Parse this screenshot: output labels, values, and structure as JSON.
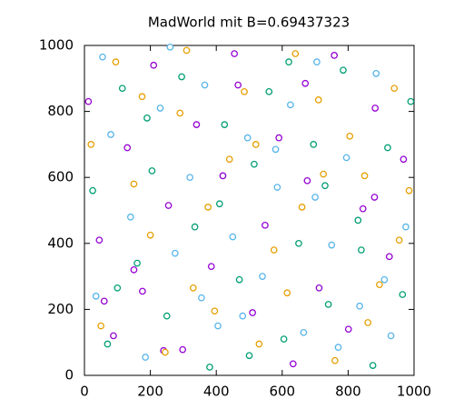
{
  "chart_data": {
    "type": "scatter",
    "title": "MadWorld mit B=0.69437323",
    "xlim": [
      0,
      1000
    ],
    "ylim": [
      0,
      1000
    ],
    "xticks": [
      0,
      200,
      400,
      600,
      800,
      1000
    ],
    "yticks": [
      0,
      200,
      400,
      600,
      800,
      1000
    ],
    "series": [
      {
        "color": "#9400d3",
        "x": [
          12,
          45,
          88,
          130,
          176,
          210,
          255,
          298,
          340,
          385,
          420,
          466,
          510,
          548,
          590,
          633,
          676,
          712,
          758,
          801,
          845,
          882,
          925,
          968,
          60,
          240,
          455,
          670,
          880,
          150
        ],
        "values": [
          830,
          410,
          120,
          690,
          255,
          940,
          515,
          78,
          760,
          330,
          605,
          880,
          190,
          455,
          720,
          35,
          590,
          265,
          970,
          140,
          505,
          810,
          360,
          655,
          225,
          75,
          975,
          885,
          540,
          320
        ]
      },
      {
        "color": "#009e73",
        "x": [
          25,
          70,
          115,
          160,
          205,
          250,
          295,
          335,
          380,
          425,
          470,
          515,
          560,
          605,
          650,
          695,
          740,
          785,
          830,
          875,
          920,
          965,
          190,
          410,
          620,
          840,
          100,
          500,
          730,
          990
        ],
        "values": [
          560,
          95,
          870,
          340,
          620,
          180,
          905,
          450,
          25,
          760,
          290,
          640,
          860,
          110,
          400,
          700,
          215,
          925,
          470,
          30,
          690,
          245,
          780,
          520,
          950,
          380,
          265,
          60,
          575,
          830
        ]
      },
      {
        "color": "#56b4e9",
        "x": [
          35,
          80,
          140,
          185,
          230,
          275,
          320,
          365,
          405,
          450,
          495,
          540,
          585,
          625,
          665,
          705,
          750,
          795,
          835,
          885,
          930,
          975,
          260,
          480,
          700,
          910,
          55,
          355,
          580,
          770
        ],
        "values": [
          240,
          730,
          480,
          55,
          810,
          370,
          600,
          880,
          150,
          420,
          720,
          300,
          570,
          820,
          130,
          950,
          395,
          660,
          210,
          915,
          120,
          450,
          995,
          180,
          540,
          290,
          965,
          235,
          685,
          85
        ]
      },
      {
        "color": "#e69f00",
        "x": [
          50,
          95,
          150,
          200,
          245,
          290,
          330,
          375,
          440,
          485,
          530,
          575,
          615,
          660,
          710,
          760,
          805,
          850,
          895,
          940,
          985,
          20,
          310,
          520,
          725,
          955,
          175,
          395,
          640,
          860
        ],
        "values": [
          150,
          950,
          580,
          425,
          70,
          795,
          265,
          510,
          655,
          860,
          95,
          380,
          250,
          510,
          835,
          45,
          725,
          605,
          275,
          870,
          560,
          700,
          985,
          700,
          610,
          410,
          845,
          195,
          975,
          160
        ]
      }
    ]
  }
}
